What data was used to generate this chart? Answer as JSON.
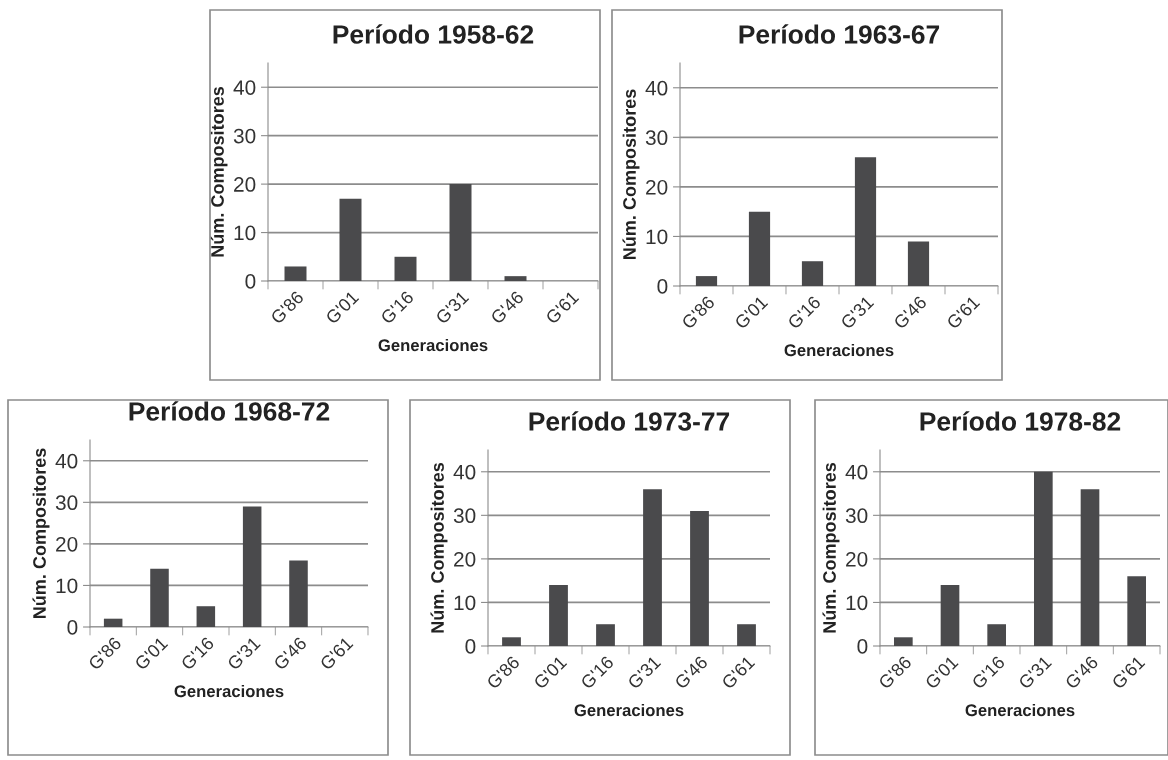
{
  "chart_data": [
    {
      "type": "bar",
      "title": "Período 1958-62",
      "xlabel": "Generaciones",
      "ylabel": "Núm. Compositores",
      "categories": [
        "G'86",
        "G'01",
        "G'16",
        "G'31",
        "G'46",
        "G'61"
      ],
      "values": [
        3,
        17,
        5,
        20,
        1,
        0
      ],
      "color": "#4a4a4c",
      "ylim": [
        0,
        45
      ],
      "yticks": [
        0,
        10,
        20,
        30,
        40
      ],
      "grid": "y"
    },
    {
      "type": "bar",
      "title": "Período 1963-67",
      "xlabel": "Generaciones",
      "ylabel": "Núm. Compositores",
      "categories": [
        "G'86",
        "G'01",
        "G'16",
        "G'31",
        "G'46",
        "G'61"
      ],
      "values": [
        2,
        15,
        5,
        26,
        9,
        0
      ],
      "color": "#4a4a4c",
      "ylim": [
        0,
        45
      ],
      "yticks": [
        0,
        10,
        20,
        30,
        40
      ],
      "grid": "y"
    },
    {
      "type": "bar",
      "title": "Período 1968-72",
      "xlabel": "Generaciones",
      "ylabel": "Núm. Compositores",
      "categories": [
        "G'86",
        "G'01",
        "G'16",
        "G'31",
        "G'46",
        "G'61"
      ],
      "values": [
        2,
        14,
        5,
        29,
        16,
        0
      ],
      "color": "#4a4a4c",
      "ylim": [
        0,
        45
      ],
      "yticks": [
        0,
        10,
        20,
        30,
        40
      ],
      "grid": "y"
    },
    {
      "type": "bar",
      "title": "Período 1973-77",
      "xlabel": "Generaciones",
      "ylabel": "Núm. Compositores",
      "categories": [
        "G'86",
        "G'01",
        "G'16",
        "G'31",
        "G'46",
        "G'61"
      ],
      "values": [
        2,
        14,
        5,
        36,
        31,
        5
      ],
      "color": "#4a4a4c",
      "ylim": [
        0,
        45
      ],
      "yticks": [
        0,
        10,
        20,
        30,
        40
      ],
      "grid": "y"
    },
    {
      "type": "bar",
      "title": "Período 1978-82",
      "xlabel": "Generaciones",
      "ylabel": "Núm. Compositores",
      "categories": [
        "G'86",
        "G'01",
        "G'16",
        "G'31",
        "G'46",
        "G'61"
      ],
      "values": [
        2,
        14,
        5,
        40,
        36,
        16
      ],
      "color": "#4a4a4c",
      "ylim": [
        0,
        45
      ],
      "yticks": [
        0,
        10,
        20,
        30,
        40
      ],
      "grid": "y"
    }
  ]
}
